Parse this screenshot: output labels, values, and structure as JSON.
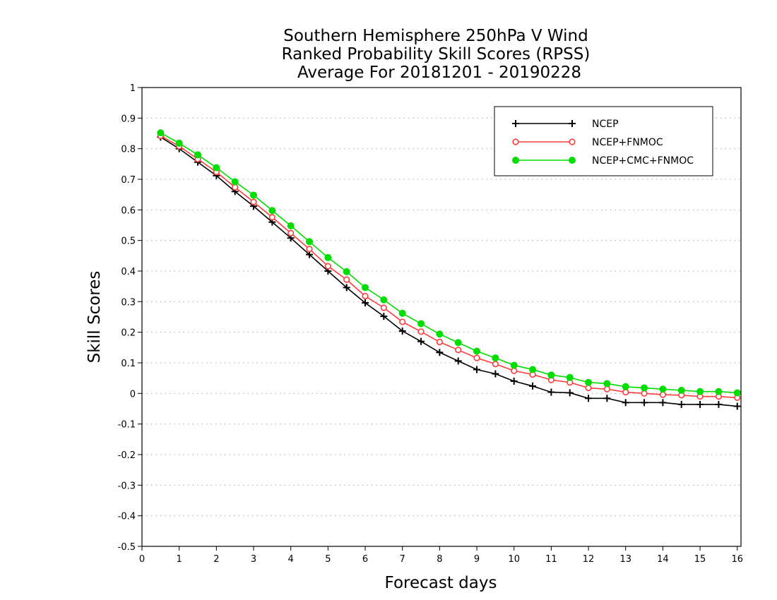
{
  "chart_data": {
    "type": "line",
    "title_lines": [
      "Southern Hemisphere 250hPa V Wind",
      "Ranked Probability Skill Scores (RPSS)",
      "Average For 20181201 - 20190228"
    ],
    "xlabel": "Forecast days",
    "ylabel": "Skill Scores",
    "xlim": [
      0,
      16.1
    ],
    "ylim": [
      -0.5,
      1
    ],
    "x_ticks": [
      "0",
      "1",
      "2",
      "3",
      "4",
      "5",
      "6",
      "7",
      "8",
      "9",
      "10",
      "11",
      "12",
      "13",
      "14",
      "15",
      "16"
    ],
    "y_ticks": [
      "1",
      "0.9",
      "0.8",
      "0.7",
      "0.6",
      "0.5",
      "0.4",
      "0.3",
      "0.2",
      "0.1",
      "0",
      "-0.1",
      "-0.2",
      "-0.3",
      "-0.4",
      "-0.5"
    ],
    "grid": "horizontal dotted",
    "legend_position": "top-right",
    "x": [
      0.5,
      1,
      1.5,
      2,
      2.5,
      3,
      3.5,
      4,
      4.5,
      5,
      5.5,
      6,
      6.5,
      7,
      7.5,
      8,
      8.5,
      9,
      9.5,
      10,
      10.5,
      11,
      11.5,
      12,
      12.5,
      13,
      13.5,
      14,
      14.5,
      15,
      15.5,
      16
    ],
    "series": [
      {
        "name": "NCEP",
        "color": "#000000",
        "marker": "plus",
        "values": [
          0.838,
          0.8,
          0.756,
          0.712,
          0.66,
          0.612,
          0.56,
          0.508,
          0.454,
          0.4,
          0.346,
          0.296,
          0.252,
          0.204,
          0.17,
          0.134,
          0.106,
          0.078,
          0.064,
          0.04,
          0.024,
          0.004,
          0.002,
          -0.016,
          -0.016,
          -0.03,
          -0.03,
          -0.03,
          -0.036,
          -0.036,
          -0.036,
          -0.042
        ]
      },
      {
        "name": "NCEP+FNMOC",
        "color": "#ff3b3b",
        "marker": "open-circle",
        "values": [
          0.842,
          0.808,
          0.766,
          0.724,
          0.674,
          0.626,
          0.576,
          0.524,
          0.472,
          0.416,
          0.372,
          0.318,
          0.28,
          0.234,
          0.202,
          0.168,
          0.142,
          0.116,
          0.096,
          0.074,
          0.062,
          0.044,
          0.036,
          0.018,
          0.014,
          0.004,
          0.0,
          -0.004,
          -0.006,
          -0.01,
          -0.01,
          -0.014
        ]
      },
      {
        "name": "NCEP+CMC+FNMOC",
        "color": "#00dd00",
        "marker": "filled-circle",
        "values": [
          0.852,
          0.818,
          0.78,
          0.738,
          0.692,
          0.648,
          0.598,
          0.548,
          0.496,
          0.444,
          0.398,
          0.346,
          0.306,
          0.262,
          0.228,
          0.194,
          0.166,
          0.138,
          0.116,
          0.092,
          0.078,
          0.06,
          0.052,
          0.036,
          0.032,
          0.022,
          0.018,
          0.014,
          0.01,
          0.006,
          0.006,
          0.002
        ]
      }
    ]
  }
}
